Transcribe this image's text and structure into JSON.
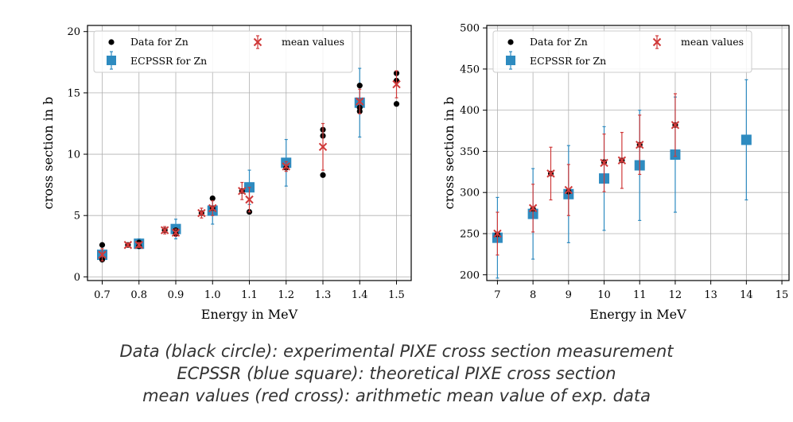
{
  "colors": {
    "data": "#000000",
    "ecpssr": "#2e8bc0",
    "mean": "#d03a3a",
    "grid": "#b0b0b0"
  },
  "chart_data": [
    {
      "type": "scatter",
      "xlabel": "Energy in MeV",
      "ylabel": "cross section in b",
      "xlim": [
        0.66,
        1.54
      ],
      "ylim": [
        -0.3,
        20.5
      ],
      "xticks": [
        0.7,
        0.8,
        0.9,
        1.0,
        1.1,
        1.2,
        1.3,
        1.4,
        1.5
      ],
      "xtick_labels": [
        "0.7",
        "0.8",
        "0.9",
        "1.0",
        "1.1",
        "1.2",
        "1.3",
        "1.4",
        "1.5"
      ],
      "yticks": [
        0,
        5,
        10,
        15,
        20
      ],
      "ytick_labels": [
        "0",
        "5",
        "10",
        "15",
        "20"
      ],
      "grid": true,
      "legend": [
        "Data for Zn",
        "ECPSSR for Zn",
        "mean values"
      ],
      "legend_position": "top",
      "series": [
        {
          "name": "Data for Zn",
          "kind": "points",
          "points": [
            [
              0.7,
              2.6
            ],
            [
              0.7,
              1.4
            ],
            [
              0.77,
              2.6
            ],
            [
              0.8,
              2.5
            ],
            [
              0.8,
              2.8
            ],
            [
              0.87,
              3.8
            ],
            [
              0.9,
              3.5
            ],
            [
              0.9,
              3.8
            ],
            [
              0.97,
              5.2
            ],
            [
              1.0,
              5.6
            ],
            [
              1.0,
              6.4
            ],
            [
              1.08,
              7.0
            ],
            [
              1.1,
              5.3
            ],
            [
              1.2,
              8.9
            ],
            [
              1.3,
              8.3
            ],
            [
              1.3,
              11.5
            ],
            [
              1.3,
              12.0
            ],
            [
              1.4,
              13.5
            ],
            [
              1.4,
              13.8
            ],
            [
              1.4,
              15.6
            ],
            [
              1.5,
              14.1
            ],
            [
              1.5,
              16.0
            ],
            [
              1.5,
              16.6
            ]
          ]
        },
        {
          "name": "ECPSSR for Zn",
          "kind": "square-errorbar",
          "points": [
            [
              0.7,
              1.8,
              0.2
            ],
            [
              0.8,
              2.7,
              0.4
            ],
            [
              0.9,
              3.9,
              0.8
            ],
            [
              1.0,
              5.4,
              1.1
            ],
            [
              1.1,
              7.3,
              1.4
            ],
            [
              1.2,
              9.3,
              1.9
            ],
            [
              1.4,
              14.2,
              2.8
            ]
          ]
        },
        {
          "name": "mean values",
          "kind": "cross-errorbar",
          "points": [
            [
              0.7,
              1.8,
              0.5
            ],
            [
              0.77,
              2.6,
              0.15
            ],
            [
              0.8,
              2.6,
              0.2
            ],
            [
              0.87,
              3.8,
              0.3
            ],
            [
              0.9,
              3.6,
              0.3
            ],
            [
              0.97,
              5.2,
              0.4
            ],
            [
              1.0,
              5.6,
              0.6
            ],
            [
              1.08,
              7.0,
              0.7
            ],
            [
              1.1,
              6.3,
              1.0
            ],
            [
              1.2,
              9.0,
              0.4
            ],
            [
              1.3,
              10.6,
              1.9
            ],
            [
              1.4,
              14.3,
              1.0
            ],
            [
              1.5,
              15.7,
              1.1
            ]
          ]
        }
      ]
    },
    {
      "type": "scatter",
      "xlabel": "Energy in MeV",
      "ylabel": "cross section in b",
      "xlim": [
        6.7,
        15.2
      ],
      "ylim": [
        193,
        503
      ],
      "xticks": [
        7,
        8,
        9,
        10,
        11,
        12,
        13,
        14,
        15
      ],
      "xtick_labels": [
        "7",
        "8",
        "9",
        "10",
        "11",
        "12",
        "13",
        "14",
        "15"
      ],
      "yticks": [
        200,
        250,
        300,
        350,
        400,
        450,
        500
      ],
      "ytick_labels": [
        "200",
        "250",
        "300",
        "350",
        "400",
        "450",
        "500"
      ],
      "grid": true,
      "legend": [
        "Data for Zn",
        "ECPSSR for Zn",
        "mean values"
      ],
      "legend_position": "top",
      "series": [
        {
          "name": "Data for Zn",
          "kind": "points",
          "points": [
            [
              7,
              249
            ],
            [
              8,
              280
            ],
            [
              8.5,
              323
            ],
            [
              9,
              301
            ],
            [
              10,
              337
            ],
            [
              10.5,
              339
            ],
            [
              11,
              358
            ],
            [
              12,
              382
            ]
          ]
        },
        {
          "name": "ECPSSR for Zn",
          "kind": "square-errorbar",
          "points": [
            [
              7,
              245,
              49
            ],
            [
              8,
              274,
              55
            ],
            [
              9,
              298,
              59
            ],
            [
              10,
              317,
              63
            ],
            [
              11,
              333,
              67
            ],
            [
              12,
              346,
              70
            ],
            [
              14,
              364,
              73
            ]
          ]
        },
        {
          "name": "mean values",
          "kind": "cross-errorbar",
          "points": [
            [
              7,
              250,
              26
            ],
            [
              8,
              281,
              29
            ],
            [
              8.5,
              323,
              32
            ],
            [
              9,
              303,
              31
            ],
            [
              10,
              336,
              35
            ],
            [
              10.5,
              339,
              34
            ],
            [
              11,
              358,
              36
            ],
            [
              12,
              382,
              38
            ]
          ]
        }
      ]
    }
  ],
  "caption": [
    "Data (black circle): experimental PIXE cross section measurement",
    "ECPSSR (blue square): theoretical PIXE cross section",
    "mean values (red cross): arithmetic mean value of exp. data"
  ]
}
